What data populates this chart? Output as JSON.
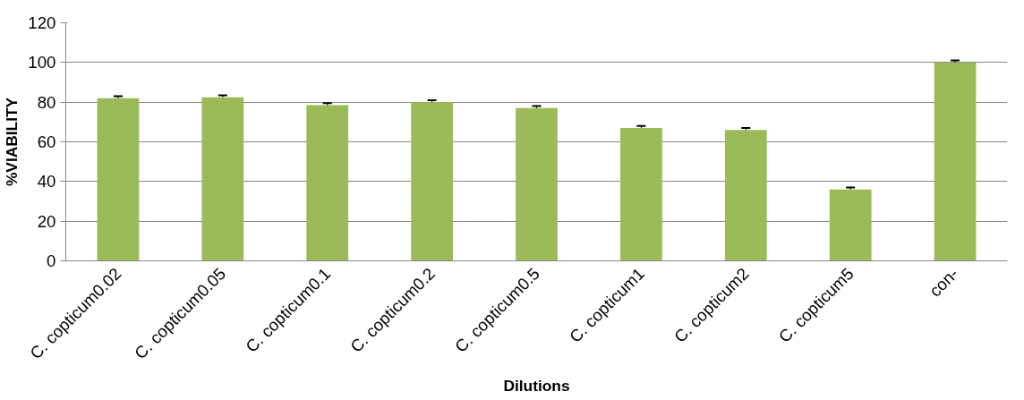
{
  "chart_data": {
    "type": "bar",
    "xlabel": "Dilutions",
    "ylabel": "%VIABILITY",
    "categories": [
      "C. copticum0.02",
      "C. copticum0.05",
      "C. copticum0.1",
      "C. copticum0.2",
      "C. copticum0.5",
      "C. copticum1",
      "C. copticum2",
      "C. copticum5",
      "con-"
    ],
    "values": [
      82,
      82.5,
      78.5,
      80,
      77,
      67,
      66,
      36,
      100
    ],
    "errors": [
      1,
      1,
      1,
      1,
      1,
      1,
      1,
      1,
      1
    ],
    "color": "#9bbb59",
    "ylim": [
      0,
      120
    ],
    "yticks": [
      0,
      20,
      40,
      60,
      80,
      100,
      120
    ],
    "grid": "y"
  }
}
